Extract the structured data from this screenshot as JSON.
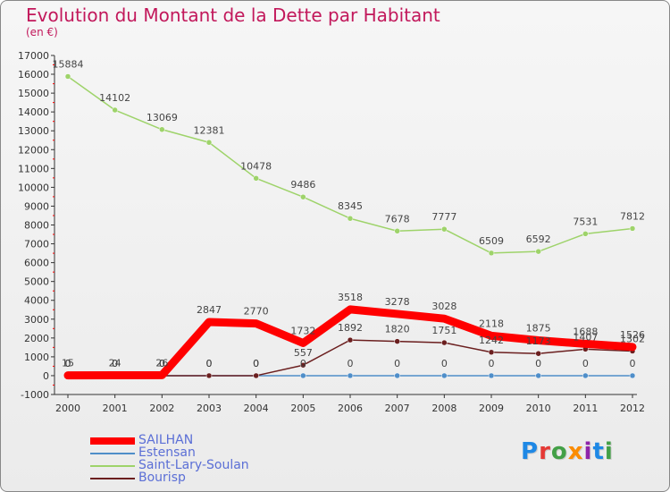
{
  "header": {
    "title": "Evolution du Montant de la Dette par Habitant",
    "subtitle": "(en €)"
  },
  "colors": {
    "title": "#c2185b",
    "legend_text": "#5b6fd6",
    "axis": "#333333",
    "grid_tick": "#ff0000"
  },
  "logo": {
    "letters": [
      "P",
      "r",
      "o",
      "x",
      "i",
      "t",
      "i"
    ],
    "colors": [
      "#1e88e5",
      "#e53935",
      "#43a047",
      "#fb8c00",
      "#8e24aa",
      "#1e88e5",
      "#43a047"
    ]
  },
  "chart_data": {
    "type": "line",
    "title": "Evolution du Montant de la Dette par Habitant",
    "subtitle": "(en €)",
    "xlabel": "",
    "ylabel": "",
    "ylim": [
      -1000,
      17000
    ],
    "yticks": [
      -1000,
      0,
      1000,
      2000,
      3000,
      4000,
      5000,
      6000,
      7000,
      8000,
      9000,
      10000,
      11000,
      12000,
      13000,
      14000,
      15000,
      16000,
      17000
    ],
    "categories": [
      "2000",
      "2001",
      "2002",
      "2003",
      "2004",
      "2005",
      "2006",
      "2007",
      "2008",
      "2009",
      "2010",
      "2011",
      "2012"
    ],
    "legend_position": "bottom-left",
    "series": [
      {
        "name": "SAILHAN",
        "color": "#ff0000",
        "width": 9,
        "marker": false,
        "values": [
          15,
          24,
          26,
          2847,
          2770,
          1732,
          3518,
          3278,
          3028,
          2118,
          1875,
          1688,
          1526
        ],
        "labels": [
          "15",
          "24",
          "26",
          "2847",
          "2770",
          "1732",
          "3518",
          "3278",
          "3028",
          "2118",
          "1875",
          "1688",
          "1526"
        ]
      },
      {
        "name": "Estensan",
        "color": "#4f8ec9",
        "width": 1.5,
        "marker": true,
        "values": [
          0,
          0,
          0,
          0,
          0,
          0,
          0,
          0,
          0,
          0,
          0,
          0,
          0
        ],
        "labels": [
          "0",
          "0",
          "0",
          "0",
          "0",
          "0",
          "0",
          "0",
          "0",
          "0",
          "0",
          "0",
          "0"
        ]
      },
      {
        "name": "Saint-Lary-Soulan",
        "color": "#9ed36a",
        "width": 1.5,
        "marker": true,
        "values": [
          15884,
          14102,
          13069,
          12381,
          10478,
          9486,
          8345,
          7678,
          7777,
          6509,
          6592,
          7531,
          7812
        ],
        "labels": [
          "15884",
          "14102",
          "13069",
          "12381",
          "10478",
          "9486",
          "8345",
          "7678",
          "7777",
          "6509",
          "6592",
          "7531",
          "7812"
        ]
      },
      {
        "name": "Bourisp",
        "color": "#6b1f1f",
        "width": 1.5,
        "marker": true,
        "values": [
          0,
          0,
          0,
          0,
          0,
          557,
          1892,
          1820,
          1751,
          1242,
          1173,
          1407,
          1302
        ],
        "labels": [
          "0",
          "0",
          "0",
          "0",
          "0",
          "557",
          "1892",
          "1820",
          "1751",
          "1242",
          "1173",
          "1407",
          "1302"
        ]
      }
    ]
  }
}
